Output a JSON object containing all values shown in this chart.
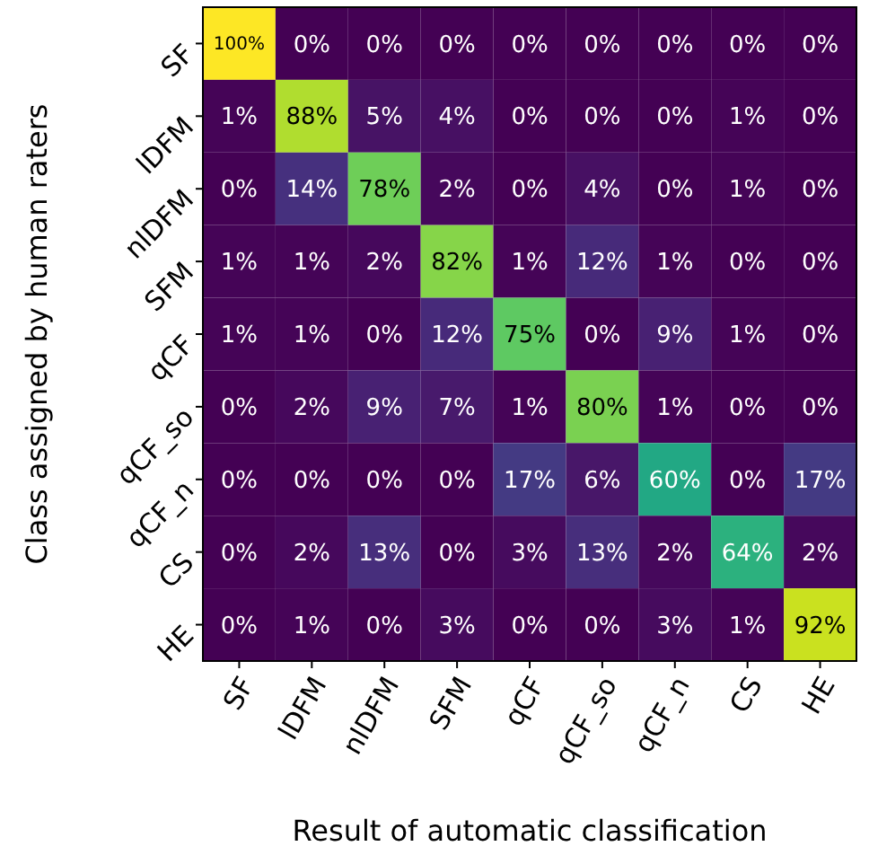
{
  "chart_data": {
    "type": "heatmap",
    "xlabel": "Result of automatic classification",
    "ylabel": "Class assigned by human raters",
    "categories": [
      "SF",
      "lDFM",
      "nlDFM",
      "SFM",
      "qCF",
      "qCF_so",
      "qCF_n",
      "CS",
      "HE"
    ],
    "y_categories": [
      "SF",
      "lDFM",
      "nlDFM",
      "SFM",
      "qCF",
      "qCF_so",
      "qCF_n",
      "CS",
      "HE"
    ],
    "cells": [
      [
        100,
        0,
        0,
        0,
        0,
        0,
        0,
        0,
        0
      ],
      [
        1,
        88,
        5,
        4,
        0,
        0,
        0,
        1,
        0
      ],
      [
        0,
        14,
        78,
        2,
        0,
        4,
        0,
        1,
        0
      ],
      [
        1,
        1,
        2,
        82,
        1,
        12,
        1,
        0,
        0
      ],
      [
        1,
        1,
        0,
        12,
        75,
        0,
        9,
        1,
        0
      ],
      [
        0,
        2,
        9,
        7,
        1,
        80,
        1,
        0,
        0
      ],
      [
        0,
        0,
        0,
        0,
        17,
        6,
        60,
        0,
        17
      ],
      [
        0,
        2,
        13,
        0,
        3,
        13,
        2,
        64,
        2
      ],
      [
        0,
        1,
        0,
        3,
        0,
        0,
        3,
        1,
        92
      ]
    ],
    "cell_labels": [
      [
        "100%",
        "0%",
        "0%",
        "0%",
        "0%",
        "0%",
        "0%",
        "0%",
        "0%"
      ],
      [
        "1%",
        "88%",
        "5%",
        "4%",
        "0%",
        "0%",
        "0%",
        "1%",
        "0%"
      ],
      [
        "0%",
        "14%",
        "78%",
        "2%",
        "0%",
        "4%",
        "0%",
        "1%",
        "0%"
      ],
      [
        "1%",
        "1%",
        "2%",
        "82%",
        "1%",
        "12%",
        "1%",
        "0%",
        "0%"
      ],
      [
        "1%",
        "1%",
        "0%",
        "12%",
        "75%",
        "0%",
        "9%",
        "1%",
        "0%"
      ],
      [
        "0%",
        "2%",
        "9%",
        "7%",
        "1%",
        "80%",
        "1%",
        "0%",
        "0%"
      ],
      [
        "0%",
        "0%",
        "0%",
        "0%",
        "17%",
        "6%",
        "60%",
        "0%",
        "17%"
      ],
      [
        "0%",
        "2%",
        "13%",
        "0%",
        "3%",
        "13%",
        "2%",
        "64%",
        "2%"
      ],
      [
        "0%",
        "1%",
        "0%",
        "3%",
        "0%",
        "0%",
        "3%",
        "1%",
        "92%"
      ]
    ]
  }
}
